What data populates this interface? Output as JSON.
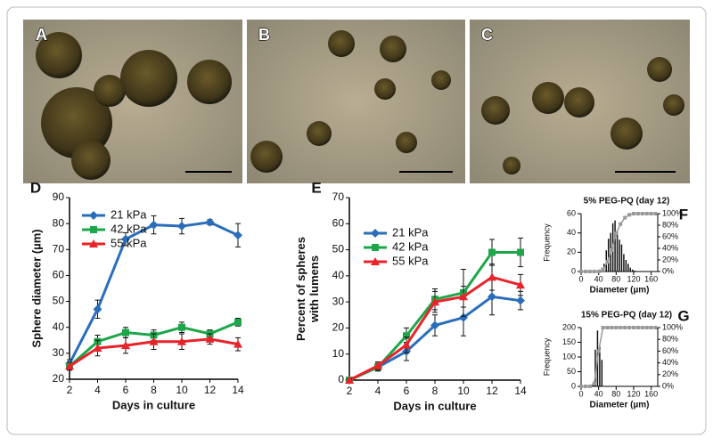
{
  "photo_labels": [
    "A",
    "B",
    "C"
  ],
  "chart_data": [
    {
      "type": "line",
      "panel_label": "D",
      "xlabel": "Days in culture",
      "ylabel": [
        "Sphere diameter (µm)"
      ],
      "x": [
        2,
        4,
        6,
        8,
        10,
        12,
        14
      ],
      "xlim": [
        2,
        14
      ],
      "xticks": [
        2,
        4,
        6,
        8,
        10,
        12,
        14
      ],
      "ylim": [
        20,
        90
      ],
      "yticks": [
        20,
        30,
        40,
        50,
        60,
        70,
        80,
        90
      ],
      "series": [
        {
          "name": "21 kPa",
          "color": "#2a6ebb",
          "marker": "diamond",
          "values": [
            26,
            47,
            74,
            79.5,
            79,
            80.5,
            75.5
          ],
          "errors": [
            1.5,
            3.5,
            2.5,
            3.5,
            3,
            1,
            4.5
          ]
        },
        {
          "name": "42 kPa",
          "color": "#1ea64a",
          "marker": "square",
          "values": [
            25,
            34.5,
            38,
            37,
            40,
            37.5,
            42
          ],
          "errors": [
            1.5,
            2.5,
            2,
            2,
            2,
            1.5,
            1.5
          ]
        },
        {
          "name": "55 kPa",
          "color": "#e8232a",
          "marker": "triangle",
          "values": [
            25,
            32,
            33,
            34.5,
            34.5,
            35.5,
            33.5
          ],
          "errors": [
            1.5,
            3,
            3,
            3,
            3,
            2,
            2.5
          ]
        }
      ]
    },
    {
      "type": "line",
      "panel_label": "E",
      "xlabel": "Days in culture",
      "ylabel": [
        "Percent of spheres",
        "with lumens"
      ],
      "x": [
        2,
        4,
        6,
        8,
        10,
        12,
        14
      ],
      "xlim": [
        2,
        14
      ],
      "xticks": [
        2,
        4,
        6,
        8,
        10,
        12,
        14
      ],
      "ylim": [
        0,
        70
      ],
      "yticks": [
        0,
        10,
        20,
        30,
        40,
        50,
        60,
        70
      ],
      "series": [
        {
          "name": "21 kPa",
          "color": "#2a6ebb",
          "marker": "diamond",
          "values": [
            0,
            5,
            11,
            21,
            24,
            32,
            30.5
          ],
          "errors": [
            0.5,
            1.5,
            3.5,
            4,
            7,
            7,
            3.5
          ]
        },
        {
          "name": "42 kPa",
          "color": "#1ea64a",
          "marker": "square",
          "values": [
            0,
            5,
            17,
            31,
            33.5,
            49,
            49
          ],
          "errors": [
            0.5,
            1.5,
            3,
            4,
            9,
            5,
            5.5
          ]
        },
        {
          "name": "55 kPa",
          "color": "#e8232a",
          "marker": "triangle",
          "values": [
            0,
            5.5,
            13.5,
            30,
            32,
            39.5,
            36.5
          ],
          "errors": [
            0.5,
            1.5,
            3,
            4,
            4,
            5,
            4
          ]
        }
      ]
    },
    {
      "type": "histogram",
      "panel_label": "F",
      "title": "5% PEG-PQ (day 12)",
      "xlabel": "Diameter (µm)",
      "ylabel": [
        "Frequency"
      ],
      "bins": [
        40,
        45,
        50,
        55,
        60,
        65,
        70,
        75,
        80,
        85,
        90,
        95,
        100,
        105,
        110,
        115,
        120,
        125
      ],
      "counts": [
        2,
        4,
        8,
        22,
        34,
        40,
        50,
        53,
        42,
        33,
        28,
        18,
        12,
        8,
        4,
        2,
        1
      ],
      "color": "#111111",
      "xlim": [
        0,
        175
      ],
      "xticks": [
        0,
        40,
        80,
        120,
        160
      ],
      "ylim": [
        0,
        60
      ],
      "yticks": [
        0,
        20,
        40,
        60
      ],
      "y2lim": [
        0,
        100
      ],
      "y2ticks": [
        {
          "value": 0,
          "label": "0%"
        },
        {
          "value": 20,
          "label": "20%"
        },
        {
          "value": 40,
          "label": "40%"
        },
        {
          "value": 60,
          "label": "60%"
        },
        {
          "value": 80,
          "label": "80%"
        },
        {
          "value": 100,
          "label": "100%"
        }
      ],
      "cumulative": {
        "axis": "y2",
        "color": "#999999",
        "x": [
          0,
          10,
          20,
          30,
          40,
          50,
          60,
          70,
          80,
          90,
          100,
          110,
          120,
          130,
          140,
          150,
          160,
          170
        ],
        "values": [
          0,
          0,
          0,
          0,
          0,
          3,
          17,
          37,
          66,
          82,
          93,
          98,
          100,
          100,
          100,
          100,
          100,
          100
        ]
      }
    },
    {
      "type": "histogram",
      "panel_label": "G",
      "title": "15% PEG-PQ (day 12)",
      "xlabel": "Diameter (µm)",
      "ylabel": [
        "Frequency"
      ],
      "bins": [
        25,
        30,
        35,
        40,
        45,
        50
      ],
      "counts": [
        5,
        125,
        190,
        135,
        90
      ],
      "color": "#111111",
      "xlim": [
        0,
        175
      ],
      "xticks": [
        0,
        40,
        80,
        120,
        160
      ],
      "ylim": [
        0,
        200
      ],
      "yticks": [
        0,
        50,
        100,
        150,
        200
      ],
      "y2lim": [
        0,
        100
      ],
      "y2ticks": [
        {
          "value": 0,
          "label": "0%"
        },
        {
          "value": 20,
          "label": "20%"
        },
        {
          "value": 40,
          "label": "40%"
        },
        {
          "value": 60,
          "label": "60%"
        },
        {
          "value": 80,
          "label": "80%"
        },
        {
          "value": 100,
          "label": "100%"
        }
      ],
      "cumulative": {
        "axis": "y2",
        "color": "#999999",
        "x": [
          0,
          10,
          20,
          30,
          40,
          50,
          60,
          70,
          80,
          90,
          100,
          110,
          120,
          130,
          140,
          150,
          160,
          170
        ],
        "values": [
          0,
          0,
          0,
          5,
          60,
          100,
          100,
          100,
          100,
          100,
          100,
          100,
          100,
          100,
          100,
          100,
          100,
          100
        ]
      }
    }
  ]
}
